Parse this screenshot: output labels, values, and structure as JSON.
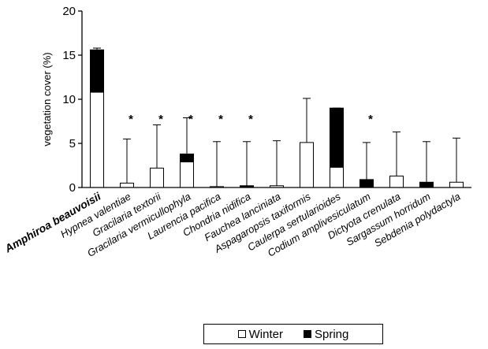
{
  "chart_data": {
    "type": "bar",
    "stacked": true,
    "title": "",
    "xlabel": "",
    "ylabel": "vegetation cover (%)",
    "ylim": [
      0,
      20
    ],
    "yticks": [
      0,
      5,
      10,
      15,
      20
    ],
    "grid": false,
    "legend_position": "bottom-center",
    "categories": [
      "Amphiroa beauvoisii",
      "Hypnea valentiae",
      "Gracilaria textorii",
      "Gracilaria vermicullophyla",
      "Laurencia pacifica",
      "Chondria nidifica",
      "Fauchea lanciniata",
      "Aspagaropsis taxiformis",
      "Caulerpa sertularioides",
      "Codium amplivesiculatum",
      "Dictyota crenulata",
      "Sargassum horridum",
      "Sebdenia polydactyla"
    ],
    "series": [
      {
        "name": "Winter",
        "color": "#ffffff",
        "values": [
          10.8,
          0.5,
          2.2,
          2.9,
          0.1,
          0.1,
          0.2,
          5.1,
          2.3,
          0.0,
          1.3,
          0.0,
          0.6
        ]
      },
      {
        "name": "Spring",
        "color": "#000000",
        "values": [
          4.8,
          0.0,
          0.0,
          0.9,
          0.0,
          0.1,
          0.0,
          0.0,
          6.7,
          0.9,
          0.0,
          0.6,
          0.0
        ]
      }
    ],
    "error_bar_upper": [
      15.8,
      5.5,
      7.1,
      7.9,
      5.2,
      5.2,
      5.3,
      10.1,
      9.0,
      5.1,
      6.3,
      5.2,
      5.6
    ],
    "significance_marker": "*",
    "significant": [
      false,
      true,
      true,
      true,
      true,
      true,
      false,
      false,
      false,
      true,
      false,
      false,
      false
    ]
  }
}
